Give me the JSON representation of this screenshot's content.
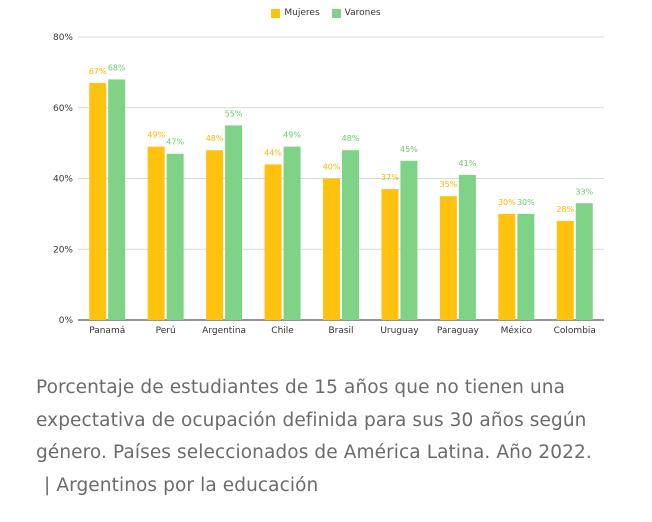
{
  "colors": {
    "mujeres": "#FFC20E",
    "varones": "#7ED386",
    "grid": "#d9d9d9",
    "axis": "#555555",
    "label_mujeres": "#F5B800",
    "label_varones": "#6CC774"
  },
  "legend": {
    "mujeres": "Mujeres",
    "varones": "Varones"
  },
  "chart_data": {
    "type": "bar",
    "categories": [
      "Panamá",
      "Perú",
      "Argentina",
      "Chile",
      "Brasil",
      "Uruguay",
      "Paraguay",
      "México",
      "Colombia"
    ],
    "series": [
      {
        "name": "Mujeres",
        "values": [
          67,
          49,
          48,
          44,
          40,
          37,
          35,
          30,
          28
        ]
      },
      {
        "name": "Varones",
        "values": [
          68,
          47,
          55,
          49,
          48,
          45,
          41,
          30,
          33
        ]
      }
    ],
    "data_labels": {
      "Mujeres": [
        "67%",
        "49%",
        "48%",
        "44%",
        "40%",
        "37%",
        "35%",
        "30%",
        "28%"
      ],
      "Varones": [
        "68%",
        "47%",
        "55%",
        "49%",
        "48%",
        "45%",
        "41%",
        "30%",
        "33%"
      ]
    },
    "yticks": [
      "0%",
      "20%",
      "40%",
      "60%",
      "80%"
    ],
    "ylim": [
      0,
      80
    ],
    "grid": true,
    "legend_position": "top-center"
  },
  "caption": {
    "text": "Porcentaje de estudiantes de 15 años que no tienen una expectativa de ocupación definida para sus 30 años según género. Países seleccionados de América Latina. Año 2022.",
    "source": "| Argentinos por la educación"
  }
}
